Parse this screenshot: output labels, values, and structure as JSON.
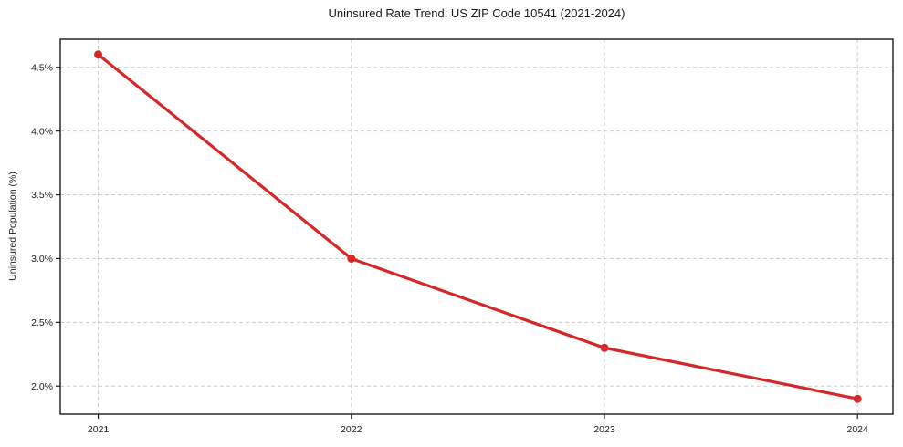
{
  "chart_data": {
    "type": "line",
    "title": "Uninsured Rate Trend: US ZIP Code 10541 (2021-2024)",
    "xlabel": "",
    "ylabel": "Uninsured Population (%)",
    "x": [
      2021,
      2022,
      2023,
      2024
    ],
    "series": [
      {
        "name": "Uninsured rate",
        "values": [
          4.6,
          3.0,
          2.3,
          1.9
        ],
        "color": "#d62728",
        "marker": "circle",
        "line_width": 3.2,
        "marker_radius": 4.5
      }
    ],
    "xticks": {
      "values": [
        2021,
        2022,
        2023,
        2024
      ],
      "labels": [
        "2021",
        "2022",
        "2023",
        "2024"
      ]
    },
    "yticks": {
      "values": [
        2.0,
        2.5,
        3.0,
        3.5,
        4.0,
        4.5
      ],
      "labels": [
        "2.0%",
        "2.5%",
        "3.0%",
        "3.5%",
        "4.0%",
        "4.5%"
      ]
    },
    "xlim": [
      2020.85,
      2024.14
    ],
    "ylim": [
      1.78,
      4.72
    ],
    "grid": true,
    "grid_style": "dashed",
    "legend": false,
    "colors": {
      "line": "#d62728",
      "grid": "#cccccc",
      "axis": "#1a1a1a",
      "text": "#1a1a1a",
      "background": "#ffffff"
    }
  }
}
